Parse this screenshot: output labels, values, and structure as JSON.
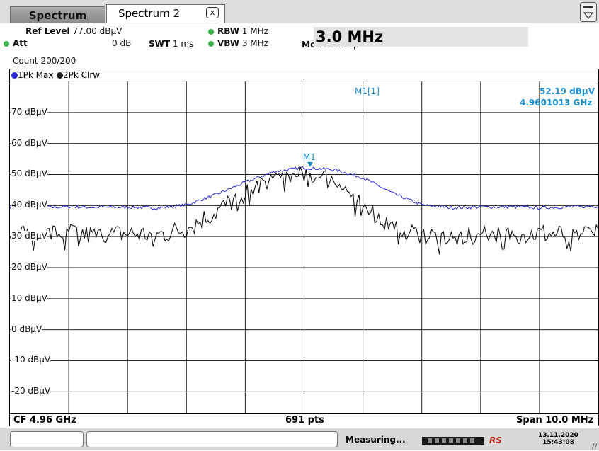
{
  "tabs": [
    {
      "label": "Spectrum",
      "active": false
    },
    {
      "label": "Spectrum 2",
      "active": true
    }
  ],
  "tab_close_glyph": "x",
  "settings": {
    "ref_level_label": "Ref Level",
    "ref_level_value": "77.00 dBµV",
    "att_label": "Att",
    "att_value": "0 dB",
    "swt_label": "SWT",
    "swt_value": "1 ms",
    "rbw_label": "RBW",
    "rbw_value": "1 MHz",
    "vbw_label": "VBW",
    "vbw_value": "3 MHz",
    "mode_label": "Mode",
    "mode_value": "Sweep",
    "count": "Count 200/200"
  },
  "input_overlay": "3.0 MHz",
  "legend": [
    {
      "label": "1Pk Max",
      "color": "#2a2ad8"
    },
    {
      "label": "2Pk Clrw",
      "color": "#111111"
    }
  ],
  "marker": {
    "label": "M1",
    "readout_label": "M1[1]",
    "level": "52.19 dBµV",
    "frequency": "4.9601013 GHz",
    "level_value": 52.19,
    "frequency_ghz": 4.9601013
  },
  "footer": {
    "center_freq": "CF 4.96 GHz",
    "points": "691 pts",
    "span": "Span 10.0 MHz"
  },
  "status": {
    "measuring": "Measuring...",
    "date": "13.11.2020",
    "time": "15:43:08",
    "logo": "RS"
  },
  "chart_data": {
    "type": "line",
    "x_unit": "GHz",
    "y_unit": "dBµV",
    "xlim": [
      4.955,
      4.965
    ],
    "ylim": [
      -27,
      80
    ],
    "y_ticks": [
      70,
      60,
      50,
      40,
      30,
      20,
      10,
      0,
      -10,
      -20
    ],
    "y_tick_labels": [
      "70 dBµV",
      "60 dBµV",
      "50 dBµV",
      "40 dBµV",
      "30 dBµV",
      "20 dBµV",
      "10 dBµV",
      "0 dBµV",
      "-10 dBµV",
      "-20 dBµV"
    ],
    "grid": true,
    "x_divisions": 10,
    "series": [
      {
        "name": "1Pk Max",
        "color": "#2a2ad8",
        "x": [
          4.955,
          4.9555,
          4.956,
          4.9565,
          4.957,
          4.9575,
          4.958,
          4.9585,
          4.959,
          4.9595,
          4.96,
          4.9605,
          4.961,
          4.9615,
          4.962,
          4.9625,
          4.963,
          4.9635,
          4.964,
          4.9645,
          4.965
        ],
        "values": [
          39.5,
          39.3,
          39.6,
          39.4,
          39.5,
          39.2,
          40.2,
          43.5,
          47.5,
          51.0,
          52.2,
          51.6,
          49.0,
          44.0,
          40.2,
          39.3,
          39.5,
          39.6,
          39.3,
          39.5,
          39.8
        ]
      },
      {
        "name": "2Pk Clrw",
        "color": "#111111",
        "x": [
          4.955,
          4.9555,
          4.956,
          4.9565,
          4.957,
          4.9575,
          4.958,
          4.9585,
          4.959,
          4.9595,
          4.96,
          4.9605,
          4.961,
          4.9615,
          4.962,
          4.9625,
          4.963,
          4.9635,
          4.964,
          4.9645,
          4.965
        ],
        "values": [
          31.0,
          30.5,
          31.5,
          30.0,
          31.0,
          30.5,
          32.5,
          38.0,
          44.0,
          49.0,
          50.0,
          48.5,
          40.0,
          33.0,
          30.5,
          30.0,
          31.0,
          30.5,
          31.0,
          30.5,
          32.0
        ]
      }
    ]
  }
}
